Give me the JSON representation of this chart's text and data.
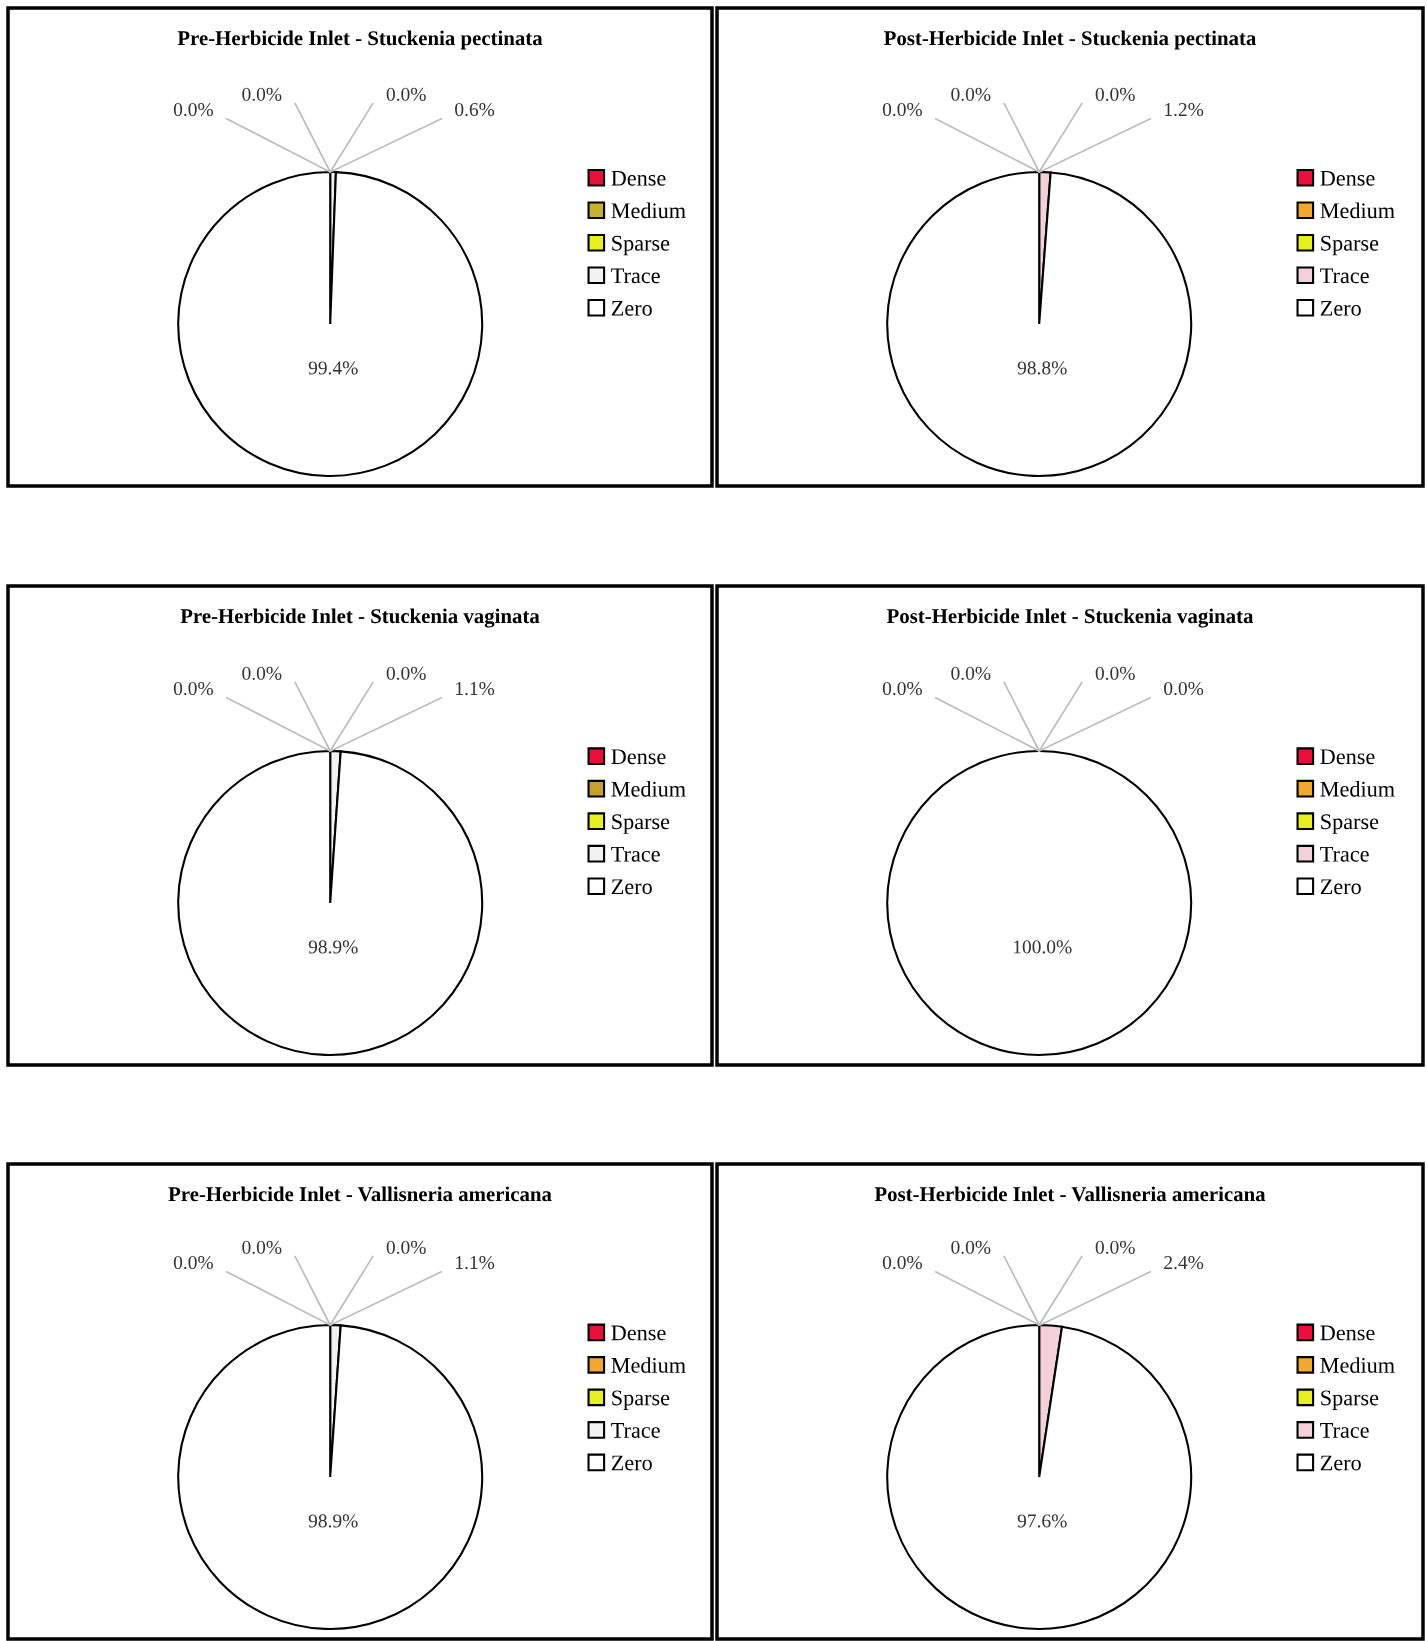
{
  "chart_data": [
    {
      "type": "pie",
      "title": "Pre-Herbicide Inlet - Stuckenia pectinata",
      "categories": [
        "Dense",
        "Medium",
        "Sparse",
        "Trace",
        "Zero"
      ],
      "values": [
        0,
        0,
        0,
        0.6,
        99.4
      ],
      "value_labels": [
        "0.0%",
        "0.0%",
        "0.0%",
        "0.6%",
        "99.4%"
      ],
      "colors": [
        "#e8103a",
        "#c8b030",
        "#e6f020",
        "#f2f2f2",
        "#ffffff"
      ],
      "legend": "right"
    },
    {
      "type": "pie",
      "title": "Post-Herbicide Inlet - Stuckenia pectinata",
      "categories": [
        "Dense",
        "Medium",
        "Sparse",
        "Trace",
        "Zero"
      ],
      "values": [
        0,
        0,
        0,
        1.2,
        98.8
      ],
      "value_labels": [
        "0.0%",
        "0.0%",
        "0.0%",
        "1.2%",
        "98.8%"
      ],
      "colors": [
        "#e8103a",
        "#f0a830",
        "#e6f020",
        "#f4d0d8",
        "#ffffff"
      ],
      "legend": "right"
    },
    {
      "type": "pie",
      "title": "Pre-Herbicide Inlet - Stuckenia vaginata",
      "categories": [
        "Dense",
        "Medium",
        "Sparse",
        "Trace",
        "Zero"
      ],
      "values": [
        0,
        0,
        0,
        1.1,
        98.9
      ],
      "value_labels": [
        "0.0%",
        "0.0%",
        "0.0%",
        "1.1%",
        "98.9%"
      ],
      "colors": [
        "#e8103a",
        "#c8a030",
        "#e6f020",
        "#f2f2f2",
        "#ffffff"
      ],
      "legend": "right"
    },
    {
      "type": "pie",
      "title": "Post-Herbicide Inlet - Stuckenia vaginata",
      "categories": [
        "Dense",
        "Medium",
        "Sparse",
        "Trace",
        "Zero"
      ],
      "values": [
        0,
        0,
        0,
        0,
        100
      ],
      "value_labels": [
        "0.0%",
        "0.0%",
        "0.0%",
        "0.0%",
        "100.0%"
      ],
      "colors": [
        "#e8103a",
        "#f0a830",
        "#e6f020",
        "#f4d0d8",
        "#ffffff"
      ],
      "legend": "right"
    },
    {
      "type": "pie",
      "title": "Pre-Herbicide Inlet - Vallisneria americana",
      "categories": [
        "Dense",
        "Medium",
        "Sparse",
        "Trace",
        "Zero"
      ],
      "values": [
        0,
        0,
        0,
        1.1,
        98.9
      ],
      "value_labels": [
        "0.0%",
        "0.0%",
        "0.0%",
        "1.1%",
        "98.9%"
      ],
      "colors": [
        "#e8103a",
        "#f0a830",
        "#e6f020",
        "#f2f2f2",
        "#ffffff"
      ],
      "legend": "right"
    },
    {
      "type": "pie",
      "title": "Post-Herbicide Inlet - Vallisneria americana",
      "categories": [
        "Dense",
        "Medium",
        "Sparse",
        "Trace",
        "Zero"
      ],
      "values": [
        0,
        0,
        0,
        2.4,
        97.6
      ],
      "value_labels": [
        "0.0%",
        "0.0%",
        "0.0%",
        "2.4%",
        "97.6%"
      ],
      "colors": [
        "#e8103a",
        "#f0a830",
        "#e6f020",
        "#f4d0d8",
        "#ffffff"
      ],
      "legend": "right"
    }
  ]
}
